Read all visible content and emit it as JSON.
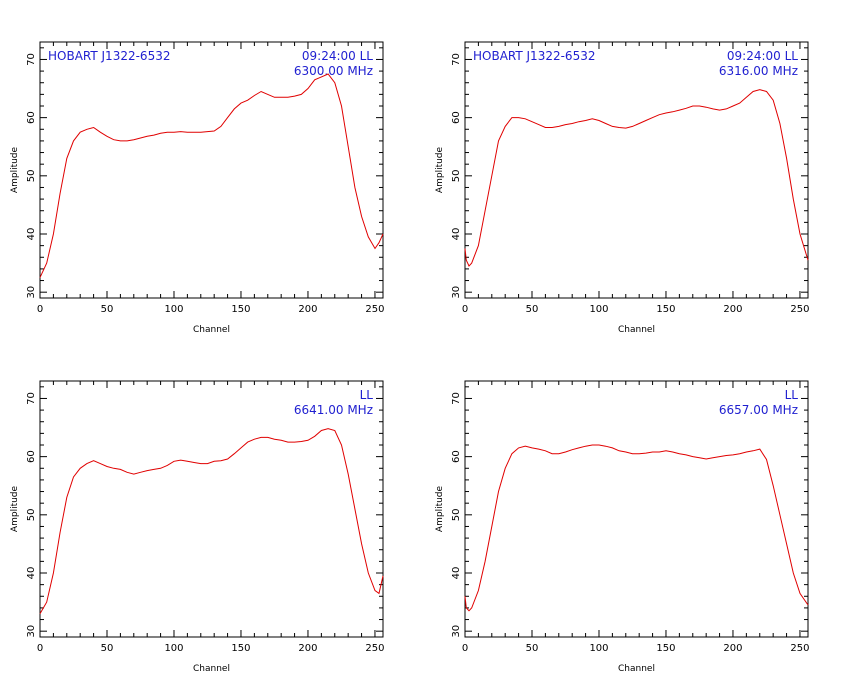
{
  "chart_data": [
    {
      "type": "line",
      "xlabel": "Channel",
      "ylabel": "Amplitude",
      "xlim": [
        0,
        256
      ],
      "ylim": [
        29,
        73
      ],
      "xticks": [
        0,
        50,
        100,
        150,
        200,
        250
      ],
      "yticks": [
        30,
        40,
        50,
        60,
        70
      ],
      "annotation_left": "HOBART J1322-6532",
      "annotation_right_1": "09:24:00  LL",
      "annotation_right_2": "6300.00  MHz",
      "color": "#e00000",
      "series": [
        {
          "x": [
            0,
            5,
            10,
            15,
            20,
            25,
            30,
            35,
            40,
            45,
            50,
            55,
            60,
            65,
            70,
            75,
            80,
            85,
            90,
            95,
            100,
            105,
            110,
            115,
            120,
            125,
            130,
            135,
            140,
            145,
            150,
            155,
            160,
            165,
            170,
            175,
            180,
            185,
            190,
            195,
            200,
            205,
            210,
            215,
            220,
            225,
            230,
            235,
            240,
            245,
            250,
            253,
            256
          ],
          "y": [
            32.5,
            35,
            40,
            47,
            53,
            56,
            57.5,
            58,
            58.3,
            57.5,
            56.8,
            56.2,
            56,
            56,
            56.2,
            56.5,
            56.8,
            57,
            57.3,
            57.5,
            57.5,
            57.6,
            57.5,
            57.5,
            57.5,
            57.6,
            57.7,
            58.5,
            60,
            61.5,
            62.5,
            63,
            63.8,
            64.5,
            64,
            63.5,
            63.5,
            63.5,
            63.7,
            64,
            65,
            66.5,
            67,
            67.5,
            66,
            62,
            55,
            48,
            43,
            39.5,
            37.5,
            38.5,
            40
          ]
        }
      ]
    },
    {
      "type": "line",
      "xlabel": "Channel",
      "ylabel": "Amplitude",
      "xlim": [
        0,
        256
      ],
      "ylim": [
        29,
        73
      ],
      "xticks": [
        0,
        50,
        100,
        150,
        200,
        250
      ],
      "yticks": [
        30,
        40,
        50,
        60,
        70
      ],
      "annotation_left": "HOBART J1322-6532",
      "annotation_right_1": "09:24:00  LL",
      "annotation_right_2": "6316.00  MHz",
      "color": "#e00000",
      "series": [
        {
          "x": [
            0,
            1,
            3,
            5,
            10,
            15,
            20,
            25,
            30,
            35,
            40,
            45,
            50,
            55,
            60,
            65,
            70,
            75,
            80,
            85,
            90,
            95,
            100,
            105,
            110,
            115,
            120,
            125,
            130,
            135,
            140,
            145,
            150,
            155,
            160,
            165,
            170,
            175,
            180,
            185,
            190,
            195,
            200,
            205,
            210,
            215,
            220,
            225,
            230,
            235,
            240,
            245,
            250,
            256
          ],
          "y": [
            37.5,
            35.5,
            34.5,
            35,
            38,
            44,
            50,
            56,
            58.5,
            60,
            60,
            59.8,
            59.3,
            58.8,
            58.3,
            58.3,
            58.5,
            58.8,
            59,
            59.3,
            59.5,
            59.8,
            59.5,
            59,
            58.5,
            58.3,
            58.2,
            58.5,
            59,
            59.5,
            60,
            60.5,
            60.8,
            61,
            61.3,
            61.6,
            62,
            62,
            61.8,
            61.5,
            61.3,
            61.5,
            62,
            62.5,
            63.5,
            64.5,
            64.8,
            64.5,
            63,
            59,
            53,
            46,
            40,
            35.5
          ]
        }
      ]
    },
    {
      "type": "line",
      "xlabel": "Channel",
      "ylabel": "Amplitude",
      "xlim": [
        0,
        256
      ],
      "ylim": [
        29,
        73
      ],
      "xticks": [
        0,
        50,
        100,
        150,
        200,
        250
      ],
      "yticks": [
        30,
        40,
        50,
        60,
        70
      ],
      "annotation_left": "",
      "annotation_right_1": "LL",
      "annotation_right_2": "6641.00  MHz",
      "color": "#e00000",
      "series": [
        {
          "x": [
            0,
            5,
            10,
            15,
            20,
            25,
            30,
            35,
            40,
            45,
            50,
            55,
            60,
            65,
            70,
            75,
            80,
            85,
            90,
            95,
            100,
            105,
            110,
            115,
            120,
            125,
            130,
            135,
            140,
            145,
            150,
            155,
            160,
            165,
            170,
            175,
            180,
            185,
            190,
            195,
            200,
            205,
            210,
            215,
            220,
            225,
            230,
            235,
            240,
            245,
            250,
            253,
            256
          ],
          "y": [
            33,
            35,
            40,
            47,
            53,
            56.5,
            58,
            58.8,
            59.3,
            58.8,
            58.3,
            58,
            57.8,
            57.3,
            57,
            57.3,
            57.6,
            57.8,
            58,
            58.5,
            59.2,
            59.4,
            59.2,
            59,
            58.8,
            58.8,
            59.2,
            59.3,
            59.6,
            60.5,
            61.5,
            62.5,
            63,
            63.3,
            63.3,
            63,
            62.8,
            62.5,
            62.5,
            62.6,
            62.8,
            63.5,
            64.5,
            64.8,
            64.5,
            62,
            57,
            51,
            45,
            40,
            37,
            36.5,
            39.5
          ]
        }
      ]
    },
    {
      "type": "line",
      "xlabel": "Channel",
      "ylabel": "Amplitude",
      "xlim": [
        0,
        256
      ],
      "ylim": [
        29,
        73
      ],
      "xticks": [
        0,
        50,
        100,
        150,
        200,
        250
      ],
      "yticks": [
        30,
        40,
        50,
        60,
        70
      ],
      "annotation_left": "",
      "annotation_right_1": "LL",
      "annotation_right_2": "6657.00  MHz",
      "color": "#e00000",
      "series": [
        {
          "x": [
            0,
            1,
            3,
            5,
            10,
            15,
            20,
            25,
            30,
            35,
            40,
            45,
            50,
            55,
            60,
            65,
            70,
            75,
            80,
            85,
            90,
            95,
            100,
            105,
            110,
            115,
            120,
            125,
            130,
            135,
            140,
            145,
            150,
            155,
            160,
            165,
            170,
            175,
            180,
            185,
            190,
            195,
            200,
            205,
            210,
            215,
            220,
            225,
            230,
            235,
            240,
            245,
            250,
            256
          ],
          "y": [
            36,
            34,
            33.5,
            34,
            37,
            42,
            48,
            54,
            58,
            60.5,
            61.5,
            61.8,
            61.5,
            61.3,
            61,
            60.5,
            60.5,
            60.8,
            61.2,
            61.5,
            61.8,
            62,
            62,
            61.8,
            61.5,
            61,
            60.8,
            60.5,
            60.5,
            60.6,
            60.8,
            60.8,
            61,
            60.8,
            60.5,
            60.3,
            60,
            59.8,
            59.6,
            59.8,
            60,
            60.2,
            60.3,
            60.5,
            60.8,
            61,
            61.3,
            59.5,
            55,
            50,
            45,
            40,
            36.5,
            34.5
          ]
        }
      ]
    }
  ]
}
